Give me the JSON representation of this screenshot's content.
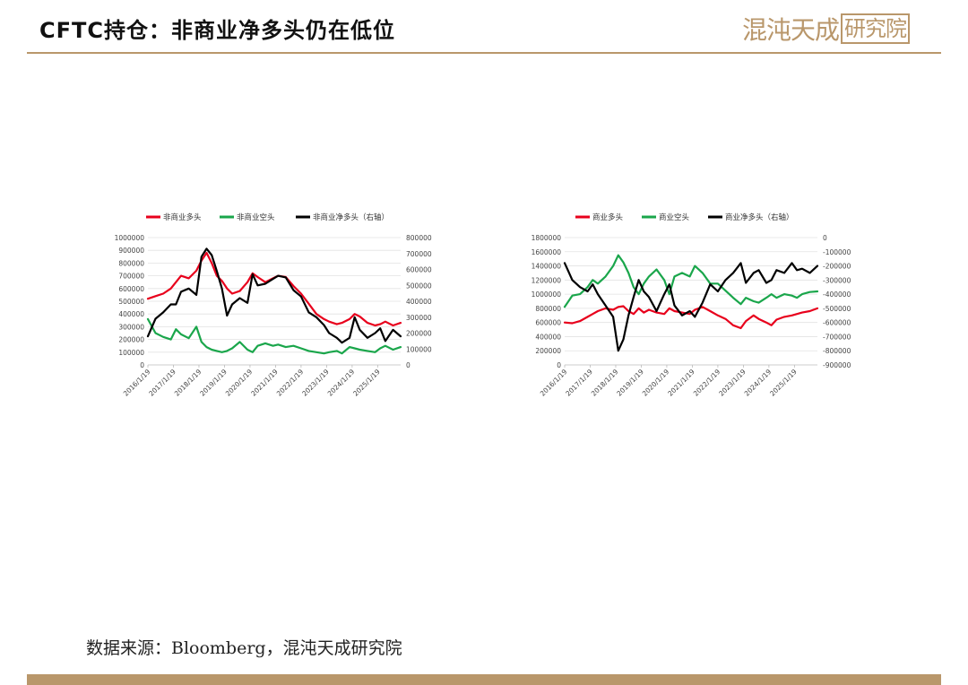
{
  "slide": {
    "title": "CFTC持仓：非商业净多头仍在低位",
    "source": "数据来源：Bloomberg，混沌天成研究院",
    "logo_main": "混沌天成",
    "logo_box": "研究院",
    "accent_color": "#b9976b"
  },
  "chart_data": [
    {
      "type": "line",
      "x_ticks": [
        "2016/1/19",
        "2017/1/19",
        "2018/1/19",
        "2019/1/19",
        "2020/1/19",
        "2021/1/19",
        "2022/1/19",
        "2023/1/19",
        "2024/1/19",
        "2025/1/19"
      ],
      "y_left_ticks": [
        "1000000",
        "900000",
        "800000",
        "700000",
        "600000",
        "500000",
        "400000",
        "300000",
        "200000",
        "100000",
        "0"
      ],
      "y_right_ticks": [
        "800000",
        "700000",
        "600000",
        "500000",
        "400000",
        "300000",
        "200000",
        "100000",
        "0"
      ],
      "ylim_left": [
        0,
        1000000
      ],
      "ylim_right": [
        0,
        800000
      ],
      "xlim": [
        2016.0,
        2025.9
      ],
      "legend_position": "top",
      "grid": true,
      "series": [
        {
          "name": "非商业多头",
          "axis": "left",
          "color": "#e8001c",
          "x": [
            2016.0,
            2016.3,
            2016.6,
            2016.9,
            2017.1,
            2017.3,
            2017.6,
            2017.9,
            2018.1,
            2018.3,
            2018.5,
            2018.7,
            2018.9,
            2019.1,
            2019.3,
            2019.6,
            2019.9,
            2020.1,
            2020.3,
            2020.6,
            2020.9,
            2021.1,
            2021.4,
            2021.7,
            2022.0,
            2022.3,
            2022.6,
            2022.9,
            2023.1,
            2023.4,
            2023.6,
            2023.9,
            2024.1,
            2024.3,
            2024.6,
            2024.9,
            2025.1,
            2025.3,
            2025.6,
            2025.9
          ],
          "y": [
            520000,
            540000,
            560000,
            600000,
            650000,
            700000,
            680000,
            740000,
            820000,
            880000,
            800000,
            700000,
            660000,
            600000,
            560000,
            580000,
            650000,
            720000,
            690000,
            650000,
            680000,
            700000,
            690000,
            620000,
            560000,
            480000,
            400000,
            360000,
            340000,
            320000,
            330000,
            360000,
            400000,
            380000,
            330000,
            310000,
            320000,
            340000,
            310000,
            330000
          ]
        },
        {
          "name": "非商业空头",
          "axis": "left",
          "color": "#1aa64b",
          "x": [
            2016.0,
            2016.3,
            2016.6,
            2016.9,
            2017.1,
            2017.3,
            2017.6,
            2017.9,
            2018.1,
            2018.3,
            2018.5,
            2018.7,
            2018.9,
            2019.1,
            2019.3,
            2019.6,
            2019.9,
            2020.1,
            2020.3,
            2020.6,
            2020.9,
            2021.1,
            2021.4,
            2021.7,
            2022.0,
            2022.3,
            2022.6,
            2022.9,
            2023.1,
            2023.4,
            2023.6,
            2023.9,
            2024.1,
            2024.3,
            2024.6,
            2024.9,
            2025.1,
            2025.3,
            2025.6,
            2025.9
          ],
          "y": [
            360000,
            250000,
            220000,
            200000,
            280000,
            240000,
            210000,
            300000,
            180000,
            140000,
            120000,
            110000,
            100000,
            110000,
            130000,
            180000,
            120000,
            100000,
            150000,
            170000,
            150000,
            160000,
            140000,
            150000,
            130000,
            110000,
            100000,
            90000,
            100000,
            110000,
            90000,
            140000,
            130000,
            120000,
            110000,
            100000,
            130000,
            150000,
            120000,
            140000
          ]
        },
        {
          "name": "非商业净多头（右轴）",
          "axis": "right",
          "color": "#000000",
          "x": [
            2016.0,
            2016.3,
            2016.6,
            2016.9,
            2017.1,
            2017.3,
            2017.6,
            2017.9,
            2018.1,
            2018.3,
            2018.5,
            2018.7,
            2018.9,
            2019.1,
            2019.3,
            2019.6,
            2019.9,
            2020.1,
            2020.3,
            2020.6,
            2020.9,
            2021.1,
            2021.4,
            2021.7,
            2022.0,
            2022.3,
            2022.6,
            2022.9,
            2023.1,
            2023.4,
            2023.6,
            2023.9,
            2024.1,
            2024.3,
            2024.6,
            2024.9,
            2025.1,
            2025.3,
            2025.6,
            2025.9
          ],
          "y": [
            180000,
            290000,
            330000,
            380000,
            380000,
            460000,
            480000,
            440000,
            680000,
            730000,
            690000,
            590000,
            480000,
            310000,
            380000,
            420000,
            390000,
            570000,
            500000,
            510000,
            540000,
            560000,
            550000,
            470000,
            430000,
            330000,
            300000,
            250000,
            200000,
            170000,
            140000,
            170000,
            300000,
            220000,
            170000,
            200000,
            230000,
            150000,
            220000,
            180000
          ]
        }
      ]
    },
    {
      "type": "line",
      "x_ticks": [
        "2016/1/19",
        "2017/1/19",
        "2018/1/19",
        "2019/1/19",
        "2020/1/19",
        "2021/1/19",
        "2022/1/19",
        "2023/1/19",
        "2024/1/19",
        "2025/1/19"
      ],
      "y_left_ticks": [
        "1800000",
        "1600000",
        "1400000",
        "1200000",
        "1000000",
        "800000",
        "600000",
        "400000",
        "200000",
        "0"
      ],
      "y_right_ticks": [
        "0",
        "-100000",
        "-200000",
        "-300000",
        "-400000",
        "-500000",
        "-600000",
        "-700000",
        "-800000",
        "-900000"
      ],
      "ylim_left": [
        0,
        1800000
      ],
      "ylim_right": [
        -900000,
        0
      ],
      "xlim": [
        2016.0,
        2025.9
      ],
      "legend_position": "top",
      "grid": true,
      "series": [
        {
          "name": "商业多头",
          "axis": "left",
          "color": "#e8001c",
          "x": [
            2016.0,
            2016.3,
            2016.6,
            2016.9,
            2017.1,
            2017.3,
            2017.6,
            2017.9,
            2018.1,
            2018.3,
            2018.5,
            2018.7,
            2018.9,
            2019.1,
            2019.3,
            2019.6,
            2019.9,
            2020.1,
            2020.3,
            2020.6,
            2020.9,
            2021.1,
            2021.4,
            2021.7,
            2022.0,
            2022.3,
            2022.6,
            2022.9,
            2023.1,
            2023.4,
            2023.6,
            2023.9,
            2024.1,
            2024.3,
            2024.6,
            2024.9,
            2025.1,
            2025.3,
            2025.6,
            2025.9
          ],
          "y": [
            600000,
            590000,
            620000,
            680000,
            720000,
            760000,
            800000,
            780000,
            820000,
            830000,
            760000,
            720000,
            800000,
            740000,
            780000,
            740000,
            720000,
            800000,
            760000,
            740000,
            720000,
            780000,
            820000,
            760000,
            700000,
            650000,
            560000,
            520000,
            620000,
            700000,
            650000,
            600000,
            560000,
            640000,
            680000,
            700000,
            720000,
            740000,
            760000,
            800000
          ]
        },
        {
          "name": "商业空头",
          "axis": "left",
          "color": "#1aa64b",
          "x": [
            2016.0,
            2016.3,
            2016.6,
            2016.9,
            2017.1,
            2017.3,
            2017.6,
            2017.9,
            2018.1,
            2018.3,
            2018.5,
            2018.7,
            2018.9,
            2019.1,
            2019.3,
            2019.6,
            2019.9,
            2020.1,
            2020.3,
            2020.6,
            2020.9,
            2021.1,
            2021.4,
            2021.7,
            2022.0,
            2022.3,
            2022.6,
            2022.9,
            2023.1,
            2023.4,
            2023.6,
            2023.9,
            2024.1,
            2024.3,
            2024.6,
            2024.9,
            2025.1,
            2025.3,
            2025.6,
            2025.9
          ],
          "y": [
            820000,
            980000,
            1000000,
            1100000,
            1200000,
            1150000,
            1250000,
            1400000,
            1550000,
            1450000,
            1300000,
            1100000,
            1000000,
            1150000,
            1250000,
            1350000,
            1200000,
            1000000,
            1250000,
            1300000,
            1250000,
            1400000,
            1300000,
            1150000,
            1150000,
            1050000,
            950000,
            860000,
            950000,
            900000,
            880000,
            950000,
            1000000,
            950000,
            1000000,
            980000,
            950000,
            1000000,
            1030000,
            1040000
          ]
        },
        {
          "name": "商业净多头（右轴）",
          "axis": "right",
          "color": "#000000",
          "x": [
            2016.0,
            2016.3,
            2016.6,
            2016.9,
            2017.1,
            2017.3,
            2017.6,
            2017.9,
            2018.1,
            2018.3,
            2018.5,
            2018.7,
            2018.9,
            2019.1,
            2019.3,
            2019.6,
            2019.9,
            2020.1,
            2020.3,
            2020.6,
            2020.9,
            2021.1,
            2021.4,
            2021.7,
            2022.0,
            2022.3,
            2022.6,
            2022.9,
            2023.1,
            2023.4,
            2023.6,
            2023.9,
            2024.1,
            2024.3,
            2024.6,
            2024.9,
            2025.1,
            2025.3,
            2025.6,
            2025.9
          ],
          "y": [
            -180000,
            -300000,
            -350000,
            -380000,
            -330000,
            -400000,
            -480000,
            -560000,
            -800000,
            -720000,
            -550000,
            -420000,
            -300000,
            -380000,
            -420000,
            -520000,
            -400000,
            -330000,
            -480000,
            -550000,
            -520000,
            -560000,
            -460000,
            -330000,
            -380000,
            -300000,
            -250000,
            -180000,
            -320000,
            -250000,
            -230000,
            -320000,
            -300000,
            -230000,
            -250000,
            -180000,
            -230000,
            -220000,
            -250000,
            -200000
          ]
        }
      ]
    }
  ]
}
